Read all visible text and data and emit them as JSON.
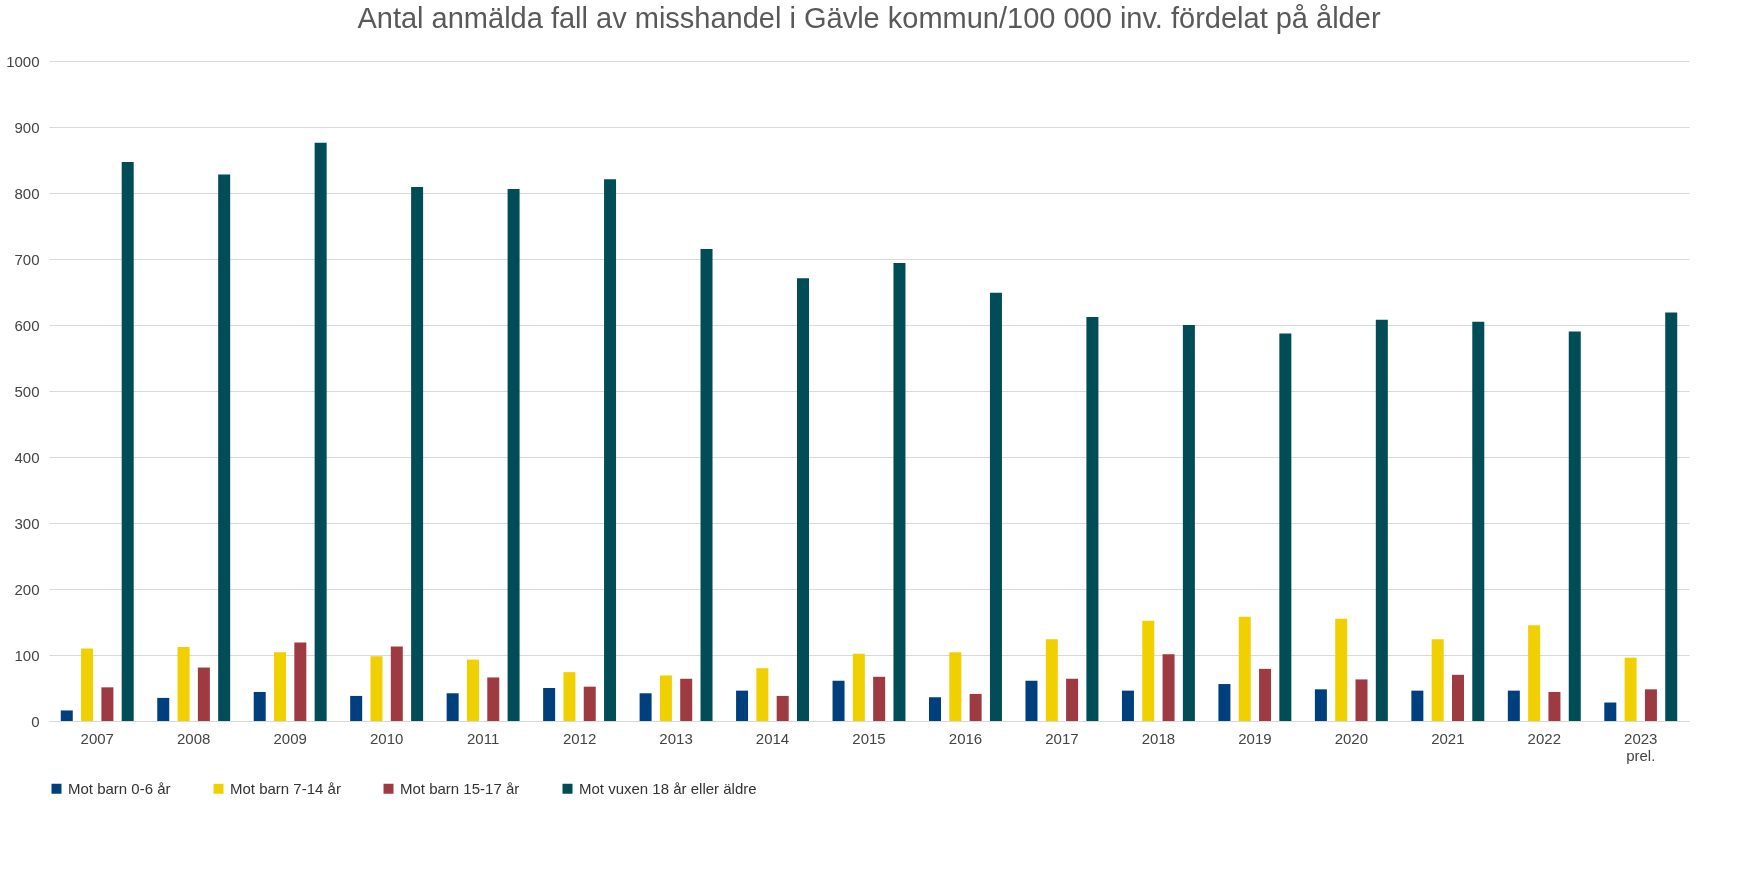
{
  "chart_data": {
    "type": "bar",
    "title": "Antal anmälda fall av misshandel i Gävle kommun/100 000 inv. fördelat på ålder",
    "categories": [
      "2007",
      "2008",
      "2009",
      "2010",
      "2011",
      "2012",
      "2013",
      "2014",
      "2015",
      "2016",
      "2017",
      "2018",
      "2019",
      "2020",
      "2021",
      "2022",
      "2023 prel."
    ],
    "series": [
      {
        "name": "Mot barn 0-6 år",
        "color": "#003f7d",
        "values": [
          16,
          35,
          44,
          38,
          42,
          50,
          42,
          46,
          61,
          36,
          61,
          46,
          56,
          48,
          46,
          46,
          28
        ]
      },
      {
        "name": "Mot barn 7-14 år",
        "color": "#f0d000",
        "values": [
          110,
          112,
          104,
          98,
          93,
          74,
          69,
          80,
          102,
          104,
          124,
          152,
          158,
          155,
          124,
          145,
          96
        ]
      },
      {
        "name": "Mot barn 15-17 år",
        "color": "#9e3a42",
        "values": [
          51,
          81,
          119,
          113,
          66,
          52,
          64,
          38,
          67,
          41,
          64,
          101,
          79,
          63,
          70,
          44,
          48
        ]
      },
      {
        "name": "Mot vuxen 18 år eller äldre",
        "color": "#004c57",
        "values": [
          847,
          828,
          876,
          809,
          806,
          821,
          715,
          671,
          694,
          649,
          612,
          600,
          587,
          608,
          605,
          590,
          619
        ]
      }
    ],
    "ylim": [
      0,
      1000
    ],
    "yticks": [
      0,
      100,
      200,
      300,
      400,
      500,
      600,
      700,
      800,
      900,
      1000
    ],
    "grid": "y",
    "legend": "bottom"
  }
}
